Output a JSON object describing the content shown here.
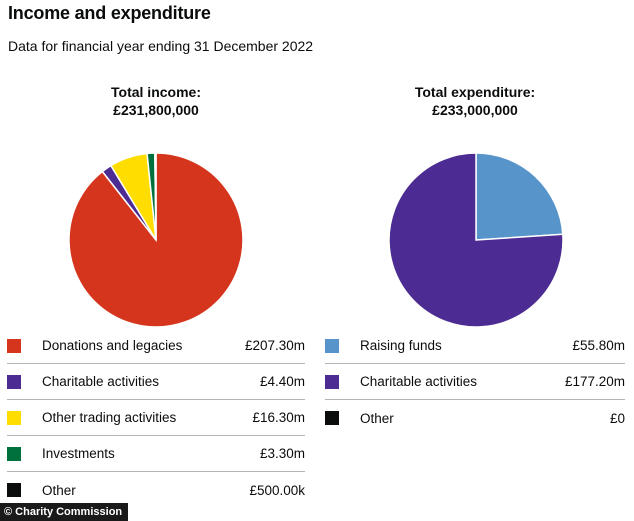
{
  "header": {
    "title": "Income and expenditure",
    "subtitle": "Data for financial year ending 31 December 2022"
  },
  "income": {
    "total_label": "Total income:",
    "total_value": "£231,800,000"
  },
  "expenditure": {
    "total_label": "Total expenditure:",
    "total_value": "£233,000,000"
  },
  "credit": "© Charity Commission",
  "chart_data": [
    {
      "type": "pie",
      "title": "Total income: £231,800,000",
      "categories": [
        "Donations and legacies",
        "Charitable activities",
        "Other trading activities",
        "Investments",
        "Other"
      ],
      "values": [
        207.3,
        4.4,
        16.3,
        3.3,
        0.5
      ],
      "display_values": [
        "£207.30m",
        "£4.40m",
        "£16.30m",
        "£3.30m",
        "£500.00k"
      ],
      "colors": [
        "#d4351c",
        "#4c2c92",
        "#ffdd00",
        "#00703c",
        "#0b0c0c"
      ],
      "legend_position": "bottom"
    },
    {
      "type": "pie",
      "title": "Total expenditure: £233,000,000",
      "categories": [
        "Raising funds",
        "Charitable activities",
        "Other"
      ],
      "values": [
        55.8,
        177.2,
        0
      ],
      "display_values": [
        "£55.80m",
        "£177.20m",
        "£0"
      ],
      "colors": [
        "#5694ca",
        "#4c2c92",
        "#0b0c0c"
      ],
      "legend_position": "bottom"
    }
  ]
}
